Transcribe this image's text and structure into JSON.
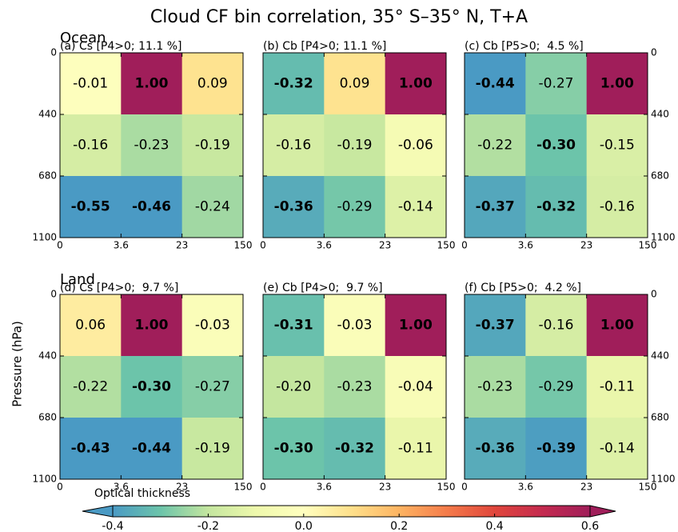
{
  "title": "Cloud CF bin correlation, 35° S–35° N, T+A",
  "groups": [
    "Ocean",
    "Land"
  ],
  "ylabel": "Pressure (hPa)",
  "xlabel": "Optical thickness",
  "colorbar": {
    "lim": [
      -0.4,
      0.6
    ],
    "ticks": [
      -0.4,
      -0.2,
      {
        "value": 0,
        "label": "0.0"
      },
      0.2,
      0.4,
      0.6
    ],
    "colors": [
      "#4a9ac4",
      "#6cc4aa",
      "#c4e69f",
      "#eef8ac",
      "#ffffbf",
      "#fee08b",
      "#fdb462",
      "#f47b4a",
      "#e0463c",
      "#c42a4f",
      "#a01e5a"
    ]
  },
  "chart_data": [
    {
      "type": "heatmap",
      "title": "(a) Cs [P4>0; 11.1 %]",
      "xticks": [
        0,
        3.6,
        23,
        150
      ],
      "yticks": [
        0,
        440,
        680,
        1100
      ],
      "ytick_labels": "left",
      "values": [
        [
          -0.01,
          1.0,
          0.09
        ],
        [
          -0.16,
          -0.23,
          -0.19
        ],
        [
          -0.55,
          -0.46,
          -0.24
        ]
      ],
      "value_labels": [
        [
          "-0.01",
          "1.00",
          "0.09"
        ],
        [
          "-0.16",
          "-0.23",
          "-0.19"
        ],
        [
          "-0.55",
          "-0.46",
          "-0.24"
        ]
      ]
    },
    {
      "type": "heatmap",
      "title": "(b) Cb [P4>0; 11.1 %]",
      "xticks": [
        0,
        3.6,
        23,
        150
      ],
      "yticks": [
        0,
        440,
        680,
        1100
      ],
      "ytick_labels": "none",
      "values": [
        [
          -0.32,
          0.09,
          1.0
        ],
        [
          -0.16,
          -0.19,
          -0.06
        ],
        [
          -0.36,
          -0.29,
          -0.14
        ]
      ],
      "value_labels": [
        [
          "-0.32",
          "0.09",
          "1.00"
        ],
        [
          "-0.16",
          "-0.19",
          "-0.06"
        ],
        [
          "-0.36",
          "-0.29",
          "-0.14"
        ]
      ]
    },
    {
      "type": "heatmap",
      "title": "(c) Cb [P5>0;  4.5 %]",
      "xticks": [
        0,
        3.6,
        23,
        150
      ],
      "yticks": [
        0,
        440,
        680,
        1100
      ],
      "ytick_labels": "right",
      "values": [
        [
          -0.44,
          -0.27,
          1.0
        ],
        [
          -0.22,
          -0.3,
          -0.15
        ],
        [
          -0.37,
          -0.32,
          -0.16
        ]
      ],
      "value_labels": [
        [
          "-0.44",
          "-0.27",
          "1.00"
        ],
        [
          "-0.22",
          "-0.30",
          "-0.15"
        ],
        [
          "-0.37",
          "-0.32",
          "-0.16"
        ]
      ]
    },
    {
      "type": "heatmap",
      "title": "(d) Cs [P4>0;  9.7 %]",
      "xticks": [
        0,
        3.6,
        23,
        150
      ],
      "yticks": [
        0,
        440,
        680,
        1100
      ],
      "ytick_labels": "left",
      "values": [
        [
          0.06,
          1.0,
          -0.03
        ],
        [
          -0.22,
          -0.3,
          -0.27
        ],
        [
          -0.43,
          -0.44,
          -0.19
        ]
      ],
      "value_labels": [
        [
          "0.06",
          "1.00",
          "-0.03"
        ],
        [
          "-0.22",
          "-0.30",
          "-0.27"
        ],
        [
          "-0.43",
          "-0.44",
          "-0.19"
        ]
      ]
    },
    {
      "type": "heatmap",
      "title": "(e) Cb [P4>0;  9.7 %]",
      "xticks": [
        0,
        3.6,
        23,
        150
      ],
      "yticks": [
        0,
        440,
        680,
        1100
      ],
      "ytick_labels": "none",
      "values": [
        [
          -0.31,
          -0.03,
          1.0
        ],
        [
          -0.2,
          -0.23,
          -0.04
        ],
        [
          -0.3,
          -0.32,
          -0.11
        ]
      ],
      "value_labels": [
        [
          "-0.31",
          "-0.03",
          "1.00"
        ],
        [
          "-0.20",
          "-0.23",
          "-0.04"
        ],
        [
          "-0.30",
          "-0.32",
          "-0.11"
        ]
      ]
    },
    {
      "type": "heatmap",
      "title": "(f) Cb [P5>0;  4.2 %]",
      "xticks": [
        0,
        3.6,
        23,
        150
      ],
      "yticks": [
        0,
        440,
        680,
        1100
      ],
      "ytick_labels": "right",
      "values": [
        [
          -0.37,
          -0.16,
          1.0
        ],
        [
          -0.23,
          -0.29,
          -0.11
        ],
        [
          -0.36,
          -0.39,
          -0.14
        ]
      ],
      "value_labels": [
        [
          "-0.37",
          "-0.16",
          "1.00"
        ],
        [
          "-0.23",
          "-0.29",
          "-0.11"
        ],
        [
          "-0.36",
          "-0.39",
          "-0.14"
        ]
      ]
    }
  ]
}
